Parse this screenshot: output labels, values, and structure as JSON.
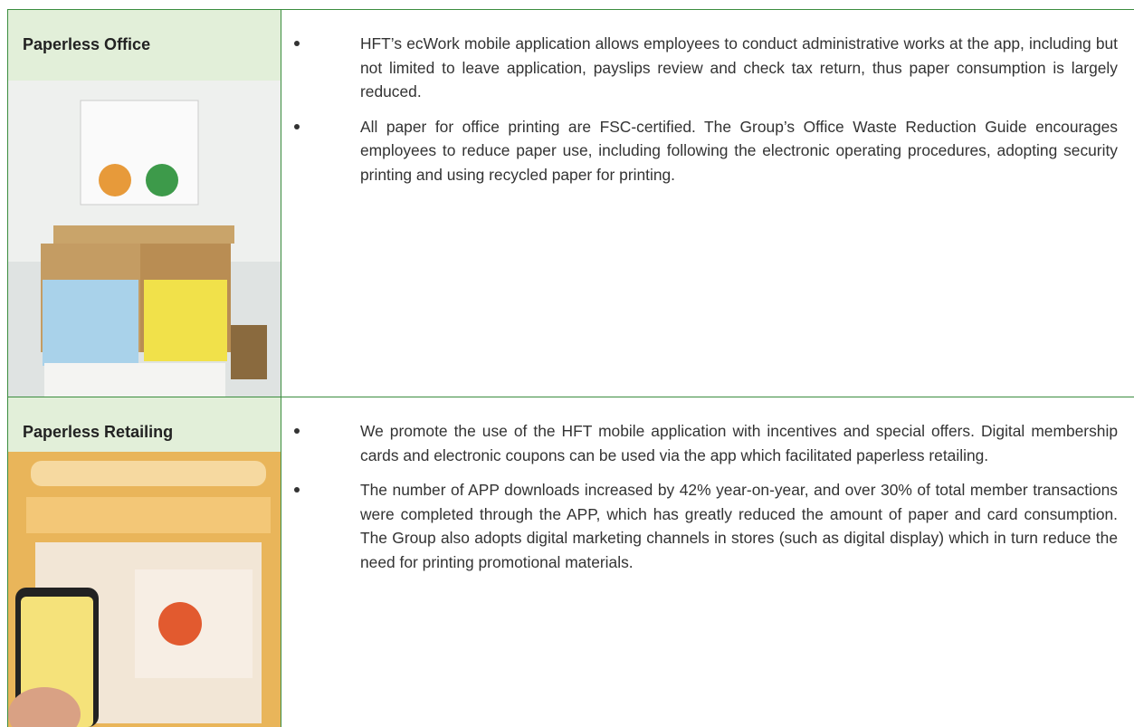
{
  "rows": [
    {
      "heading": "Paperless Office",
      "items": [
        "HFT’s ecWork mobile application allows employees to conduct administrative works at the app, including but not limited to leave application, payslips review and check tax return, thus paper consumption is largely reduced.",
        "All paper for office printing are FSC-certified. The Group’s Office Waste Reduction Guide encourages employees to reduce paper use, including following the electronic operating procedures, adopting security printing and using recycled paper for printing."
      ]
    },
    {
      "heading": "Paperless Retailing",
      "items": [
        "We promote the use of the HFT mobile application with incentives and special offers. Digital membership cards and electronic coupons can be used via the app which facilitated paperless retailing.",
        "The number of APP downloads increased by 42% year-on-year, and over 30% of total member transactions were completed through the APP, which has greatly reduced the amount of paper and card consumption. The Group also adopts digital marketing channels in stores (such as digital display) which in turn reduce the need for printing promotional materials."
      ]
    }
  ]
}
